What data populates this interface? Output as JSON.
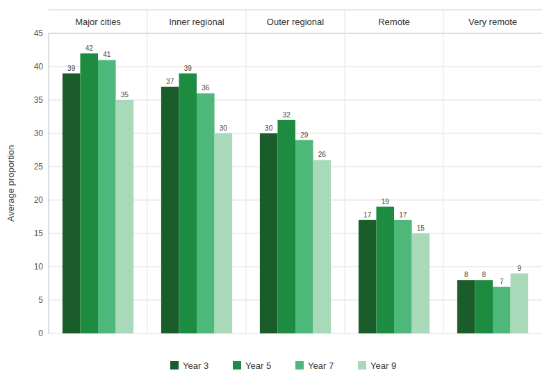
{
  "chart_data": {
    "type": "bar",
    "ylabel": "Average proportion",
    "categories": [
      "Major cities",
      "Inner regional",
      "Outer regional",
      "Remote",
      "Very remote"
    ],
    "series": [
      {
        "name": "Year 3",
        "color": "#1a5c2a",
        "values": [
          39,
          37,
          30,
          17,
          8
        ]
      },
      {
        "name": "Year 5",
        "color": "#1e8c40",
        "values": [
          42,
          39,
          32,
          19,
          8
        ]
      },
      {
        "name": "Year 7",
        "color": "#4db87a",
        "values": [
          41,
          36,
          29,
          17,
          7
        ]
      },
      {
        "name": "Year 9",
        "color": "#a8d9b8",
        "values": [
          35,
          30,
          26,
          15,
          9
        ]
      }
    ],
    "ylim": [
      0,
      45
    ],
    "yticks": [
      0,
      5,
      10,
      15,
      20,
      25,
      30,
      35,
      40,
      45
    ],
    "grid": true,
    "data_labels": true,
    "legend": "bottom"
  }
}
